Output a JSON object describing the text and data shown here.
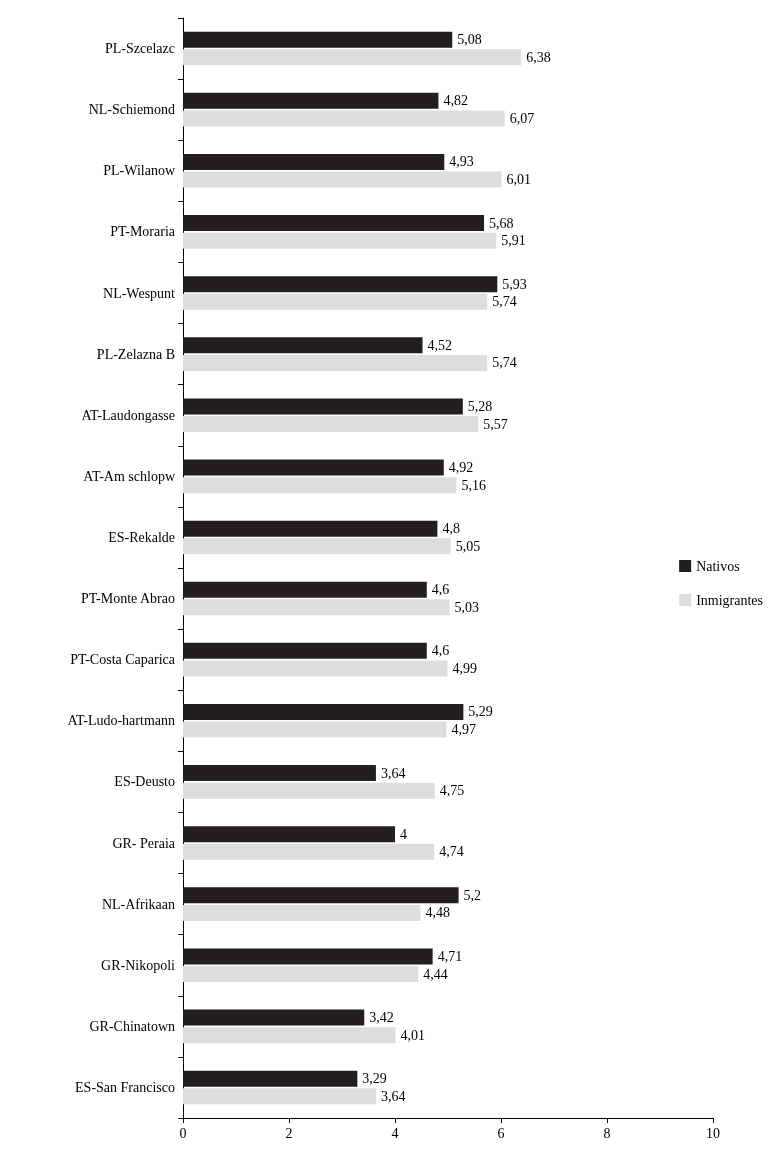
{
  "chart_data": {
    "type": "bar",
    "orientation": "horizontal",
    "categories": [
      "PL-Szcelazc",
      "NL-Schiemond",
      "PL-Wilanow",
      "PT-Moraria",
      "NL-Wespunt",
      "PL-Zelazna B",
      "AT-Laudongasse",
      "AT-Am schlopw",
      "ES-Rekalde",
      "PT-Monte Abrao",
      "PT-Costa Caparica",
      "AT-Ludo-hartmann",
      "ES-Deusto",
      "GR- Peraia",
      "NL-Afrikaan",
      "GR-Nikopoli",
      "GR-Chinatown",
      "ES-San Francisco"
    ],
    "series": [
      {
        "name": "Nativos",
        "color": "#231f20",
        "values": [
          5.08,
          4.82,
          4.93,
          5.68,
          5.93,
          4.52,
          5.28,
          4.92,
          4.8,
          4.6,
          4.6,
          5.29,
          3.64,
          4,
          5.2,
          4.71,
          3.42,
          3.29
        ],
        "value_labels": [
          "5,08",
          "4,82",
          "4,93",
          "5,68",
          "5,93",
          "4,52",
          "5,28",
          "4,92",
          "4,8",
          "4,6",
          "4,6",
          "5,29",
          "3,64",
          "4",
          "5,2",
          "4,71",
          "3,42",
          "3,29"
        ]
      },
      {
        "name": "Inmigrantes",
        "color": "#dcdddf",
        "values": [
          6.38,
          6.07,
          6.01,
          5.91,
          5.74,
          5.74,
          5.57,
          5.16,
          5.05,
          5.03,
          4.99,
          4.97,
          4.75,
          4.74,
          4.48,
          4.44,
          4.01,
          3.64
        ],
        "value_labels": [
          "6,38",
          "6,07",
          "6,01",
          "5,91",
          "5,74",
          "5,74",
          "5,57",
          "5,16",
          "5,05",
          "5,03",
          "4,99",
          "4,97",
          "4,75",
          "4,74",
          "4,48",
          "4,44",
          "4,01",
          "3,64"
        ]
      }
    ],
    "xlim": [
      0,
      10
    ],
    "xticks": [
      0,
      2,
      4,
      6,
      8,
      10
    ],
    "grid": false,
    "legend": "right"
  }
}
